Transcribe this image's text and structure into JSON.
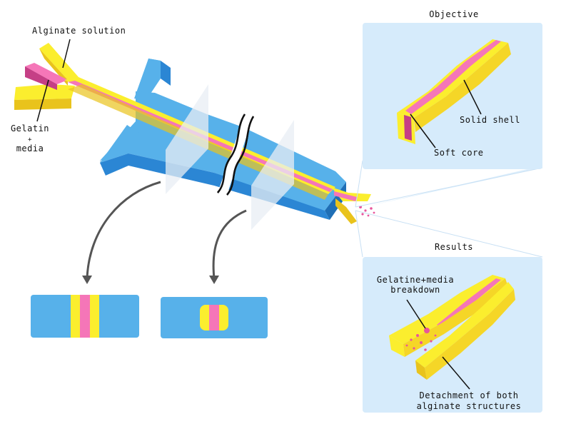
{
  "labels": {
    "alginate_solution": "Alginate solution",
    "gelatin_line1": "Gelatin",
    "gelatin_line2": "+",
    "gelatin_line3": "media",
    "objective_title": "Objective",
    "solid_shell": "Solid shell",
    "soft_core": "Soft core",
    "results_title": "Results",
    "breakdown_line1": "Gelatine+media",
    "breakdown_line2": "breakdown",
    "detachment_line1": "Detachment of both",
    "detachment_line2": "alginate structures"
  },
  "colors": {
    "chip_top": "#57b1ea",
    "chip_side": "#2b86d4",
    "alginate": "#fbee2e",
    "alginate_dark": "#e9c31c",
    "gelatin": "#f576b8",
    "gelatin_dark": "#c53f86",
    "panel_bg": "#d6ebfb",
    "cell_dots": "#e8559c"
  }
}
